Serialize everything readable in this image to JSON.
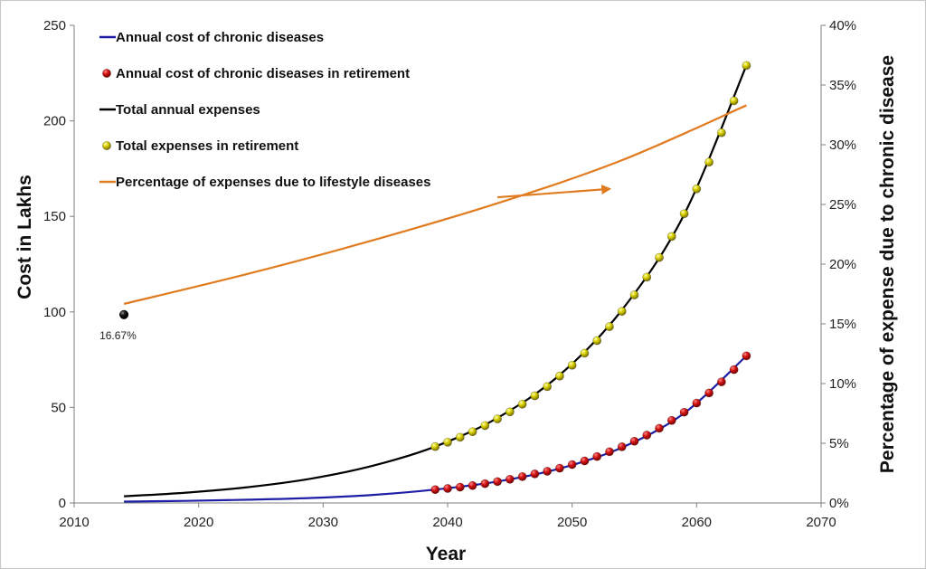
{
  "chart_data": {
    "type": "line",
    "xlabel": "Year",
    "ylabel": "Cost in Lakhs",
    "y2label": "Percentage of expense due to chronic disease",
    "xlim": [
      2010,
      2070
    ],
    "ylim": [
      0,
      250
    ],
    "y2lim": [
      0,
      40
    ],
    "x_ticks": [
      "2010",
      "2020",
      "2030",
      "2040",
      "2050",
      "2060",
      "2070"
    ],
    "y_ticks": [
      "0",
      "50",
      "100",
      "150",
      "200",
      "250"
    ],
    "y2_ticks": [
      "0%",
      "5%",
      "10%",
      "15%",
      "20%",
      "25%",
      "30%",
      "35%",
      "40%"
    ],
    "grid": false,
    "legend_position": "top-left",
    "series": [
      {
        "name": "Annual cost of chronic diseases",
        "axis": "left",
        "style": "line",
        "color": "#1f1fa6",
        "x": [
          2014,
          2019,
          2024,
          2029,
          2034,
          2039,
          2044,
          2049,
          2054,
          2059,
          2064
        ],
        "values": [
          0.7,
          1.1,
          1.7,
          2.6,
          4.2,
          7.0,
          11.2,
          18.0,
          29.0,
          47.0,
          77.0
        ]
      },
      {
        "name": "Annual cost of chronic diseases in retirement",
        "axis": "left",
        "style": "markers",
        "color": "#c00000",
        "x": [
          2039,
          2040,
          2041,
          2042,
          2043,
          2044,
          2045,
          2046,
          2047,
          2048,
          2049,
          2050,
          2051,
          2052,
          2053,
          2054,
          2055,
          2056,
          2057,
          2058,
          2059,
          2060,
          2061,
          2062,
          2063,
          2064
        ],
        "values": [
          7.0,
          7.6,
          8.3,
          9.1,
          10.1,
          11.2,
          12.4,
          13.8,
          15.2,
          16.6,
          18.2,
          20.1,
          22.0,
          24.3,
          26.8,
          29.4,
          32.3,
          35.5,
          39.1,
          43.2,
          47.5,
          52.3,
          57.6,
          63.4,
          69.8,
          77.0
        ]
      },
      {
        "name": "Total annual expenses",
        "axis": "left",
        "style": "line",
        "color": "#000000",
        "x": [
          2014,
          2019,
          2024,
          2029,
          2034,
          2039,
          2044,
          2049,
          2054,
          2059,
          2064
        ],
        "values": [
          3.5,
          5.4,
          8.3,
          12.7,
          19.5,
          29.5,
          44.5,
          67.0,
          101.0,
          151.0,
          229.0
        ]
      },
      {
        "name": "Total expenses in retirement",
        "axis": "left",
        "style": "markers",
        "color": "#d4c800",
        "x": [
          2039,
          2040,
          2041,
          2042,
          2043,
          2044,
          2045,
          2046,
          2047,
          2048,
          2049,
          2050,
          2051,
          2052,
          2053,
          2054,
          2055,
          2056,
          2057,
          2058,
          2059,
          2060,
          2061,
          2062,
          2063,
          2064
        ],
        "values": [
          29.5,
          31.8,
          34.4,
          37.3,
          40.5,
          44.0,
          47.7,
          51.7,
          56.1,
          60.9,
          66.4,
          72.1,
          78.4,
          85.0,
          92.3,
          100.3,
          108.9,
          118.2,
          128.5,
          139.5,
          151.4,
          164.4,
          178.4,
          193.8,
          210.5,
          229.0
        ]
      },
      {
        "name": "Percentage of expenses due to lifestyle diseases",
        "axis": "right",
        "style": "line",
        "color": "#e07b20",
        "x": [
          2014,
          2024,
          2034,
          2044,
          2054,
          2064
        ],
        "values": [
          16.67,
          19.2,
          22.0,
          25.1,
          28.7,
          33.3
        ]
      }
    ],
    "annotations": [
      {
        "text": "16.67%",
        "x": 2014,
        "y": 100
      }
    ],
    "arrow": {
      "from": [
        2044,
        25.6
      ],
      "to": [
        2053,
        26.3
      ],
      "color": "#e07b20"
    }
  }
}
